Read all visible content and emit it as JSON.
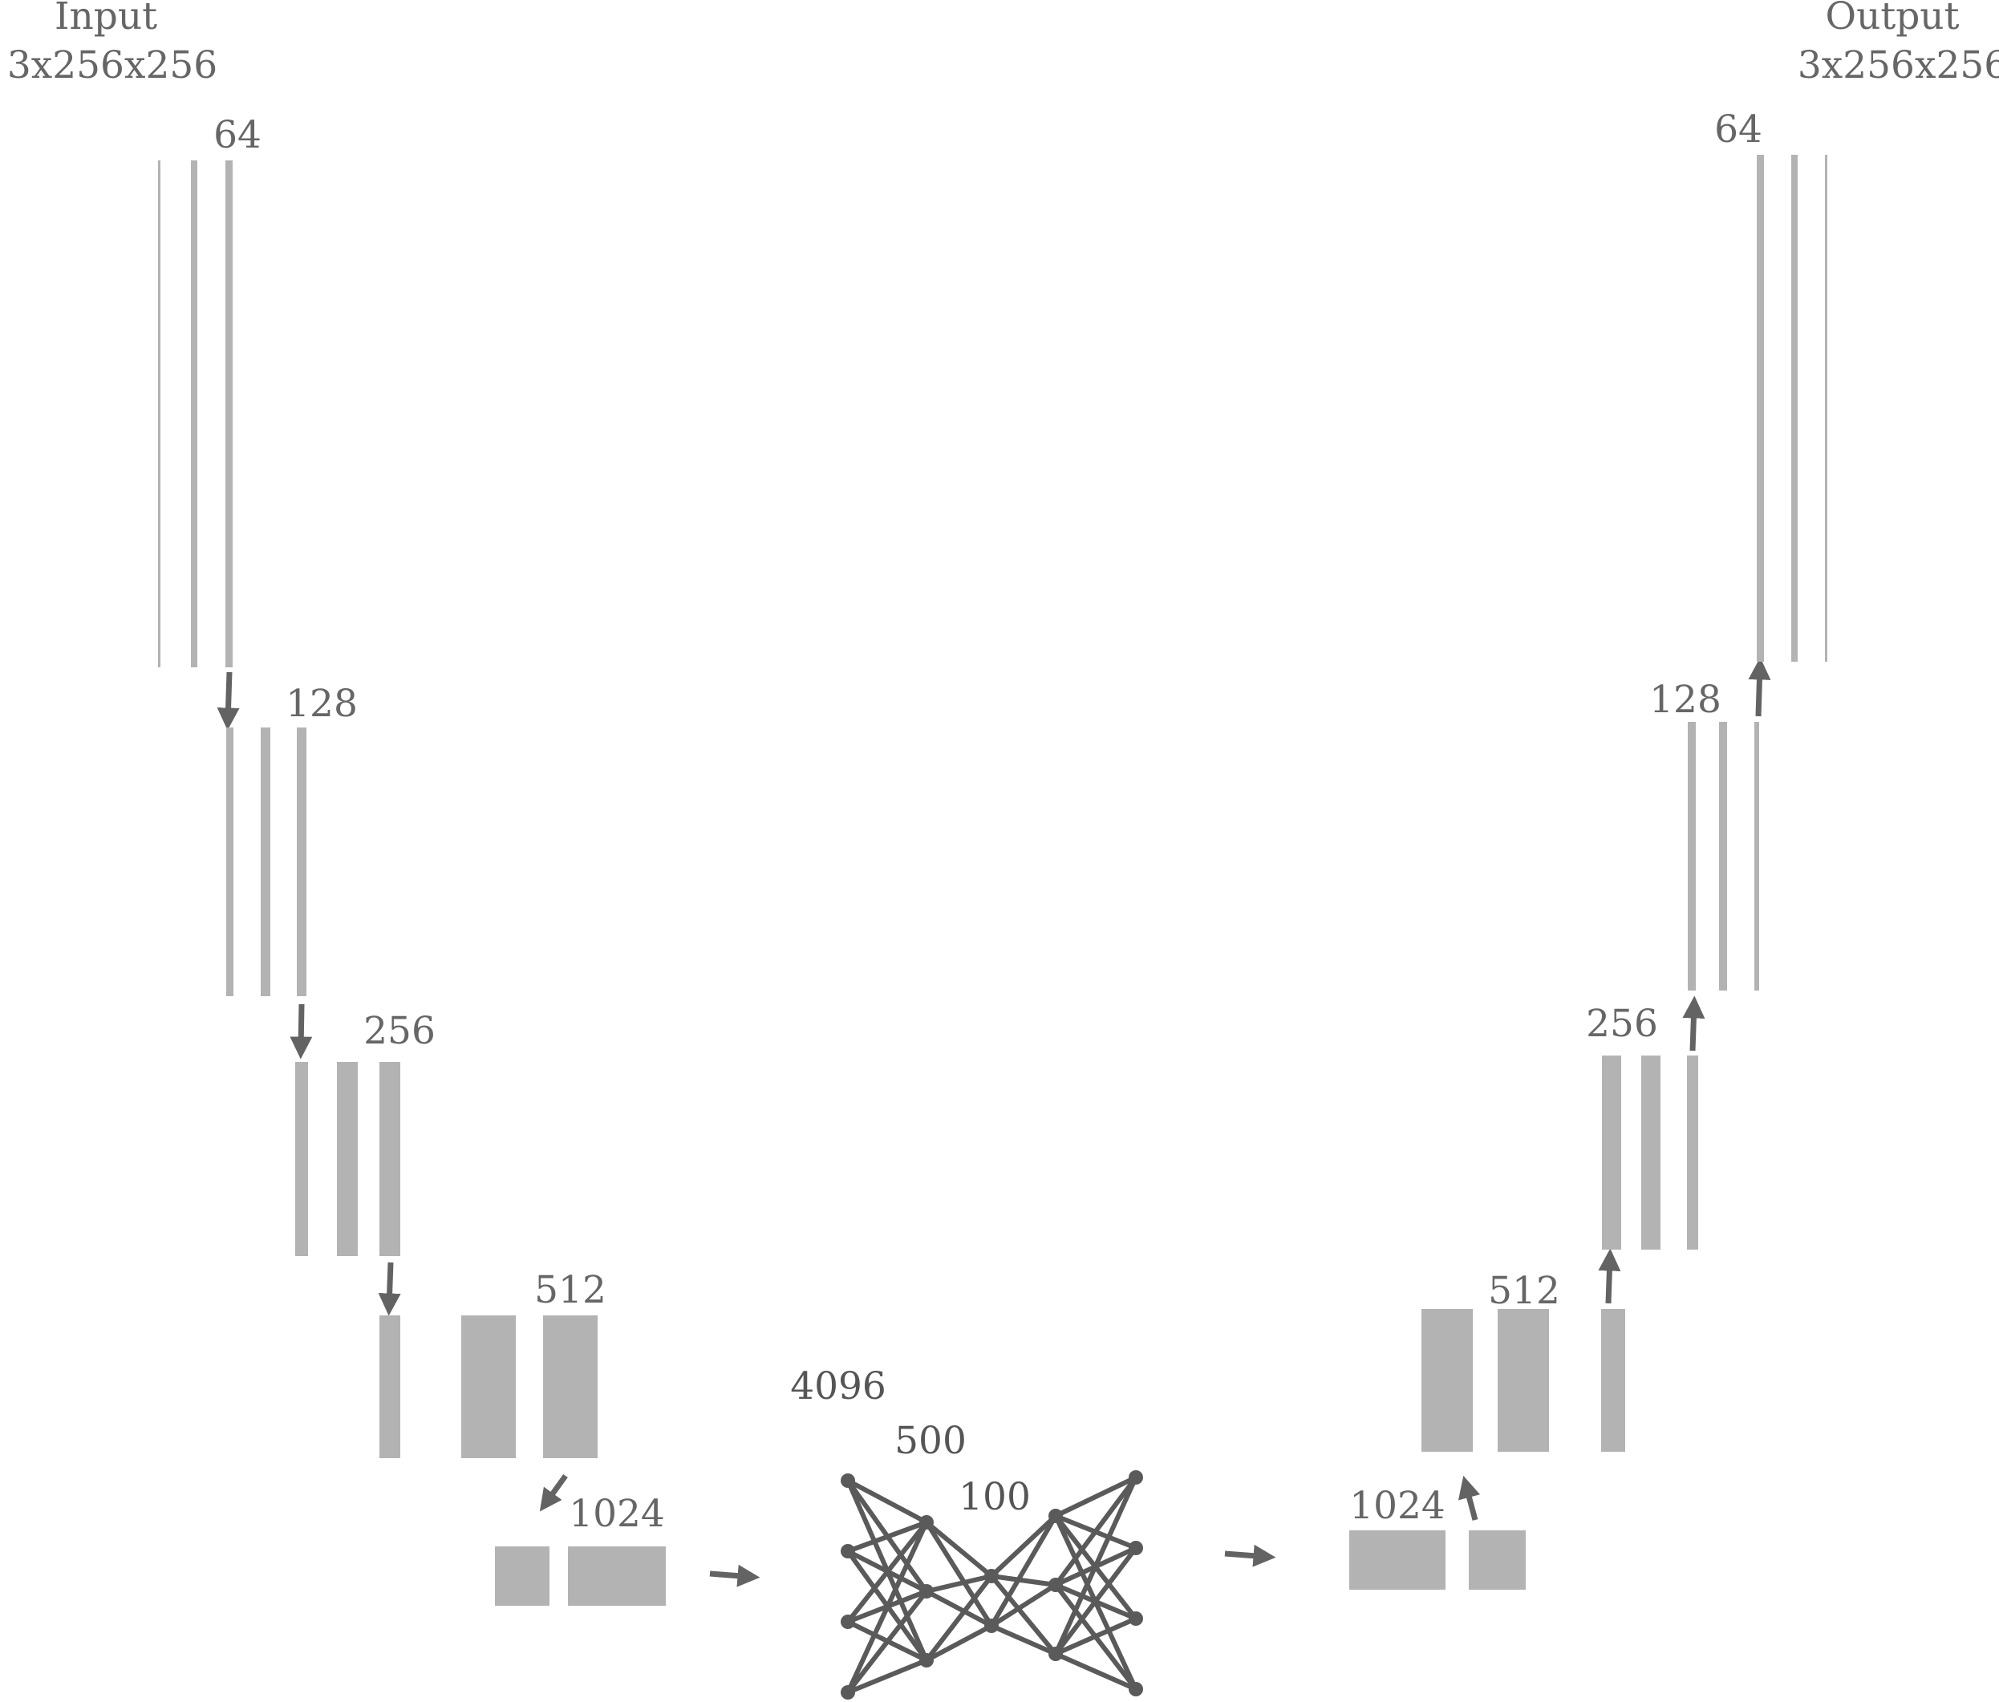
{
  "colors": {
    "block": "#b3b3b3",
    "arrow": "#636363",
    "text": "#666666",
    "node": "#5a5a5a"
  },
  "io": {
    "input_title": "Input",
    "input_dims": "3x256x256",
    "output_title": "Output",
    "output_dims": "3x256x256"
  },
  "encoder": {
    "stage_64": "64",
    "stage_128": "128",
    "stage_256": "256",
    "stage_512": "512",
    "stage_1024": "1024"
  },
  "decoder": {
    "stage_64": "64",
    "stage_128": "128",
    "stage_256": "256",
    "stage_512": "512",
    "stage_1024": "1024"
  },
  "bottleneck": {
    "layer_4096": "4096",
    "layer_500": "500",
    "layer_100": "100",
    "layer_node_counts": [
      4,
      3,
      2,
      3,
      4
    ]
  }
}
